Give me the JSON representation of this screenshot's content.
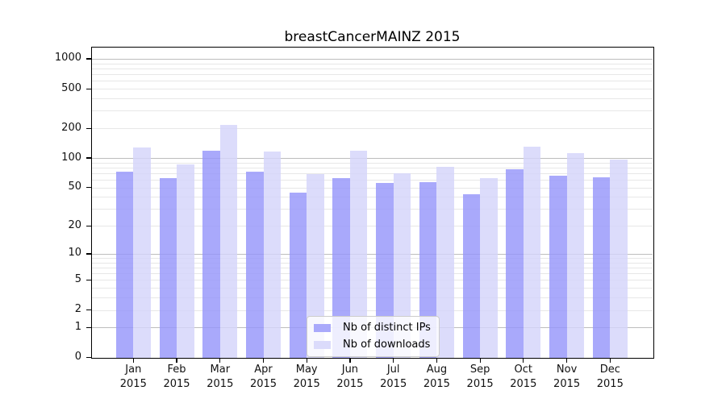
{
  "chart_data": {
    "type": "bar",
    "title": "breastCancerMAINZ 2015",
    "year": "2015",
    "months": [
      "Jan",
      "Feb",
      "Mar",
      "Apr",
      "May",
      "Jun",
      "Jul",
      "Aug",
      "Sep",
      "Oct",
      "Nov",
      "Dec"
    ],
    "categories": [
      "Jan 2015",
      "Feb 2015",
      "Mar 2015",
      "Apr 2015",
      "May 2015",
      "Jun 2015",
      "Jul 2015",
      "Aug 2015",
      "Sep 2015",
      "Oct 2015",
      "Nov 2015",
      "Dec 2015"
    ],
    "series": [
      {
        "name": "Nb of distinct IPs",
        "values": [
          73,
          62,
          118,
          72,
          44,
          62,
          56,
          57,
          43,
          77,
          66,
          64
        ],
        "color": "rgba(150,150,250,0.82)",
        "swatch_color": "#a9a9fb"
      },
      {
        "name": "Nb of downloads",
        "values": [
          128,
          86,
          215,
          117,
          69,
          118,
          70,
          81,
          62,
          129,
          113,
          97
        ],
        "color": "rgba(212,212,250,0.82)",
        "swatch_color": "#dbdbfb"
      }
    ],
    "y_axis": {
      "scale": "log1p",
      "ticks": [
        0,
        1,
        2,
        5,
        10,
        20,
        50,
        100,
        200,
        500,
        1000
      ],
      "major_grid_values": [
        1,
        10,
        100,
        1000
      ],
      "range": [
        0,
        1200
      ]
    },
    "x_axis": {
      "label_lines_per_tick": 2
    },
    "grid": true,
    "legend_position": "lower center",
    "colors": {
      "major_grid": "#bdbdbd",
      "minor_grid": "#e7e7e7",
      "spine": "#000000",
      "legend_border": "#cccccc",
      "background": "#ffffff"
    }
  },
  "legend": {
    "items": [
      {
        "label": "Nb of distinct IPs"
      },
      {
        "label": "Nb of downloads"
      }
    ]
  }
}
